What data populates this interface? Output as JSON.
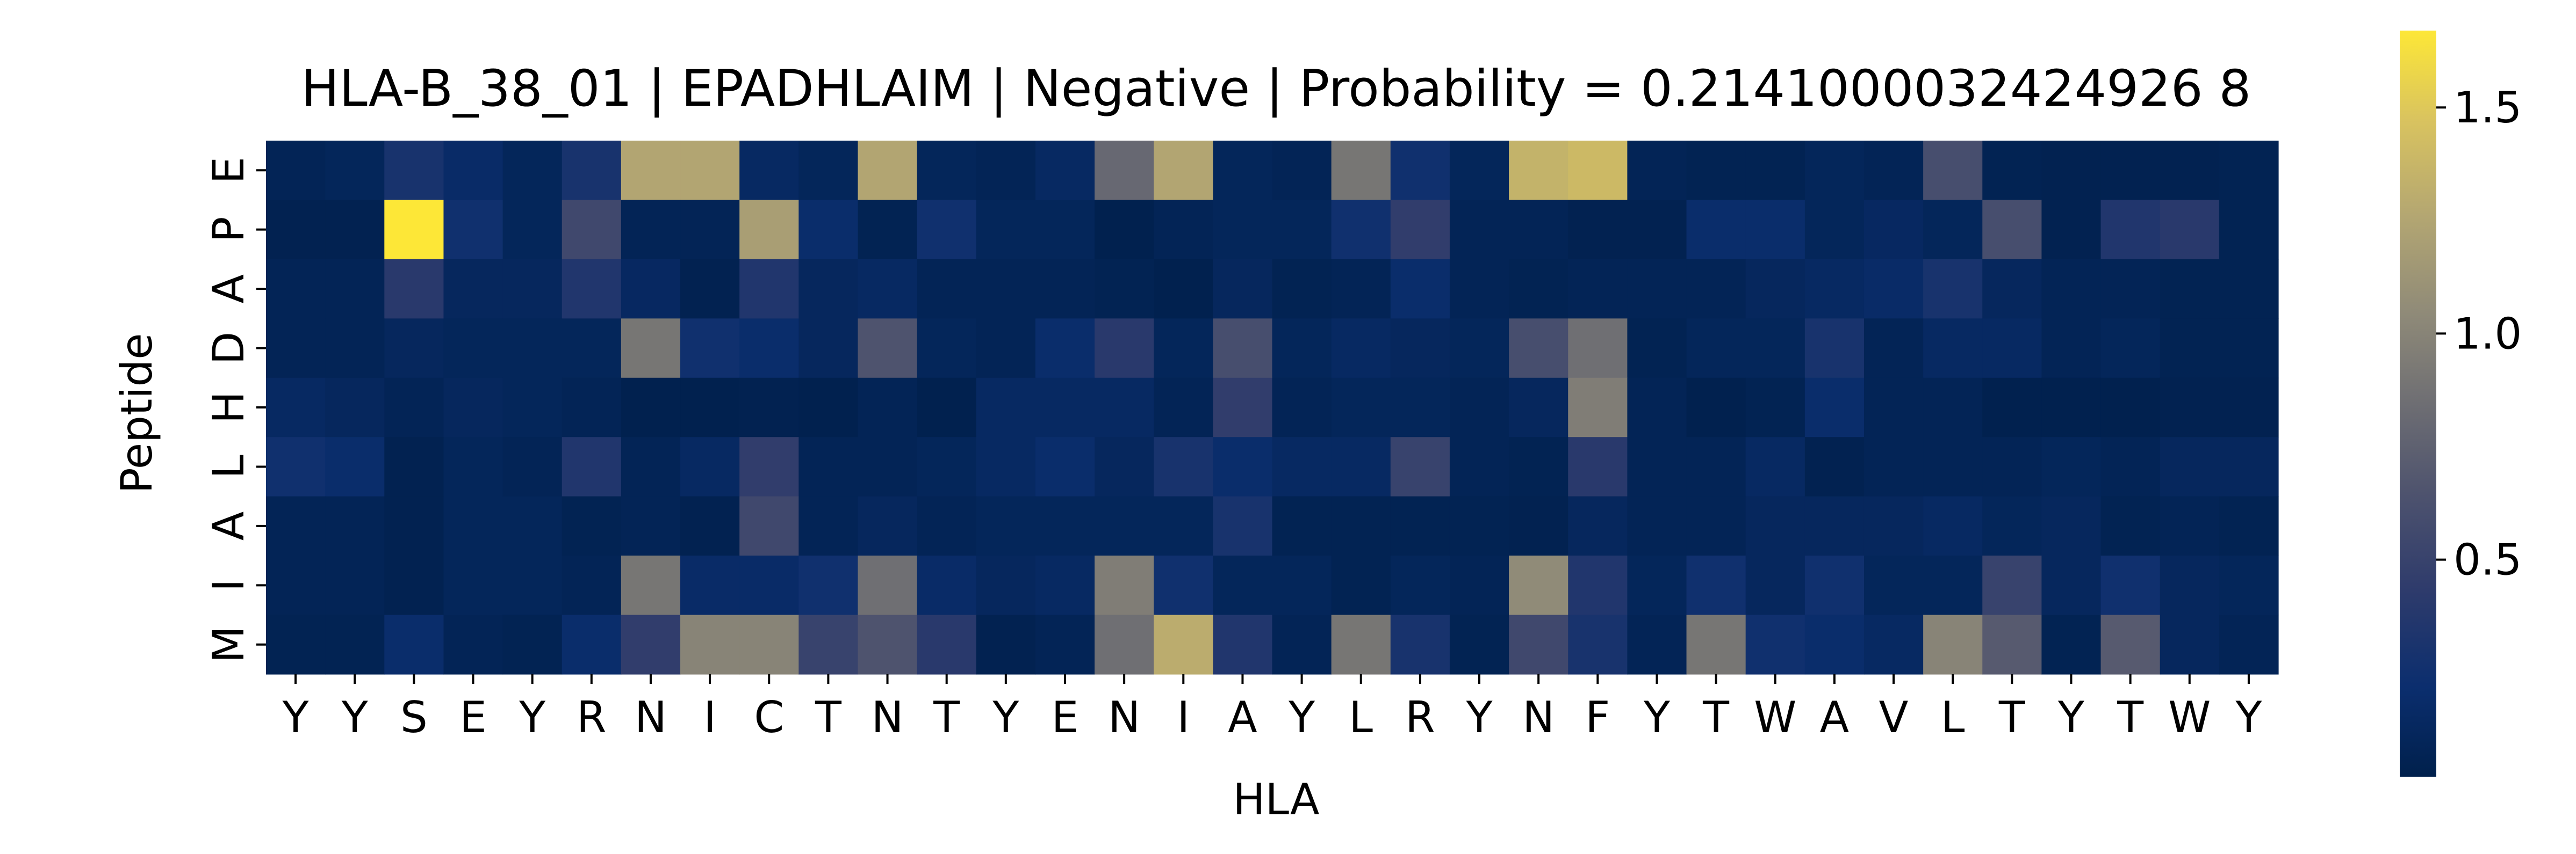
{
  "chart_data": {
    "type": "heatmap",
    "title": "HLA-B_38_01 | EPADHLAIM | Negative | Probability = 0.2141000032424926 8",
    "xlabel": "HLA",
    "ylabel": "Peptide",
    "x_labels": [
      "Y",
      "Y",
      "S",
      "E",
      "Y",
      "R",
      "N",
      "I",
      "C",
      "T",
      "N",
      "T",
      "Y",
      "E",
      "N",
      "I",
      "A",
      "Y",
      "L",
      "R",
      "Y",
      "N",
      "F",
      "Y",
      "T",
      "W",
      "A",
      "V",
      "L",
      "T",
      "Y",
      "T",
      "W",
      "Y"
    ],
    "y_labels": [
      "E",
      "P",
      "A",
      "D",
      "H",
      "L",
      "A",
      "I",
      "M"
    ],
    "colormap": "cividis",
    "colorbar_range": [
      0.02,
      1.67
    ],
    "colorbar_ticks": [
      "0.5",
      "1.0",
      "1.5"
    ],
    "colorbar_tick_values": [
      0.5,
      1.0,
      1.5
    ],
    "values": [
      [
        0.08,
        0.1,
        0.3,
        0.18,
        0.1,
        0.3,
        1.25,
        1.25,
        0.15,
        0.1,
        1.25,
        0.1,
        0.08,
        0.15,
        0.8,
        1.25,
        0.1,
        0.08,
        0.9,
        0.25,
        0.1,
        1.35,
        1.4,
        0.08,
        0.06,
        0.06,
        0.1,
        0.08,
        0.6,
        0.06,
        0.05,
        0.05,
        0.05,
        0.06
      ],
      [
        0.05,
        0.05,
        1.67,
        0.25,
        0.1,
        0.55,
        0.08,
        0.08,
        1.2,
        0.2,
        0.06,
        0.25,
        0.1,
        0.1,
        0.04,
        0.08,
        0.1,
        0.1,
        0.25,
        0.45,
        0.08,
        0.08,
        0.05,
        0.05,
        0.2,
        0.2,
        0.1,
        0.14,
        0.1,
        0.6,
        0.05,
        0.35,
        0.4,
        0.06
      ],
      [
        0.08,
        0.08,
        0.4,
        0.12,
        0.12,
        0.35,
        0.14,
        0.05,
        0.35,
        0.12,
        0.15,
        0.08,
        0.08,
        0.08,
        0.06,
        0.04,
        0.12,
        0.06,
        0.08,
        0.2,
        0.08,
        0.06,
        0.08,
        0.08,
        0.08,
        0.12,
        0.15,
        0.18,
        0.3,
        0.12,
        0.08,
        0.08,
        0.06,
        0.06
      ],
      [
        0.08,
        0.08,
        0.12,
        0.1,
        0.1,
        0.1,
        0.9,
        0.25,
        0.2,
        0.12,
        0.65,
        0.1,
        0.08,
        0.2,
        0.4,
        0.1,
        0.6,
        0.1,
        0.15,
        0.12,
        0.1,
        0.6,
        0.85,
        0.06,
        0.1,
        0.1,
        0.3,
        0.08,
        0.15,
        0.15,
        0.08,
        0.1,
        0.06,
        0.06
      ],
      [
        0.15,
        0.12,
        0.08,
        0.12,
        0.1,
        0.08,
        0.04,
        0.04,
        0.05,
        0.04,
        0.08,
        0.04,
        0.15,
        0.15,
        0.15,
        0.08,
        0.45,
        0.08,
        0.1,
        0.1,
        0.08,
        0.12,
        0.95,
        0.08,
        0.04,
        0.06,
        0.2,
        0.08,
        0.08,
        0.04,
        0.04,
        0.04,
        0.05,
        0.05
      ],
      [
        0.25,
        0.2,
        0.05,
        0.1,
        0.08,
        0.35,
        0.08,
        0.15,
        0.45,
        0.08,
        0.08,
        0.1,
        0.15,
        0.2,
        0.12,
        0.3,
        0.2,
        0.15,
        0.15,
        0.5,
        0.08,
        0.06,
        0.4,
        0.08,
        0.08,
        0.15,
        0.05,
        0.08,
        0.08,
        0.08,
        0.1,
        0.08,
        0.12,
        0.12
      ],
      [
        0.08,
        0.08,
        0.05,
        0.1,
        0.1,
        0.06,
        0.08,
        0.05,
        0.55,
        0.08,
        0.12,
        0.08,
        0.1,
        0.1,
        0.1,
        0.1,
        0.3,
        0.06,
        0.06,
        0.06,
        0.06,
        0.05,
        0.12,
        0.08,
        0.08,
        0.12,
        0.12,
        0.12,
        0.15,
        0.1,
        0.12,
        0.06,
        0.08,
        0.06
      ],
      [
        0.08,
        0.08,
        0.05,
        0.1,
        0.1,
        0.08,
        0.9,
        0.18,
        0.18,
        0.25,
        0.85,
        0.18,
        0.12,
        0.15,
        0.95,
        0.25,
        0.1,
        0.1,
        0.06,
        0.1,
        0.08,
        1.05,
        0.35,
        0.1,
        0.25,
        0.12,
        0.25,
        0.1,
        0.1,
        0.5,
        0.12,
        0.25,
        0.12,
        0.1
      ],
      [
        0.06,
        0.06,
        0.2,
        0.08,
        0.06,
        0.2,
        0.45,
        1.0,
        1.0,
        0.5,
        0.65,
        0.4,
        0.05,
        0.08,
        0.85,
        1.3,
        0.35,
        0.08,
        0.9,
        0.3,
        0.06,
        0.55,
        0.3,
        0.08,
        0.9,
        0.25,
        0.2,
        0.15,
        1.0,
        0.7,
        0.06,
        0.7,
        0.12,
        0.08
      ]
    ]
  }
}
